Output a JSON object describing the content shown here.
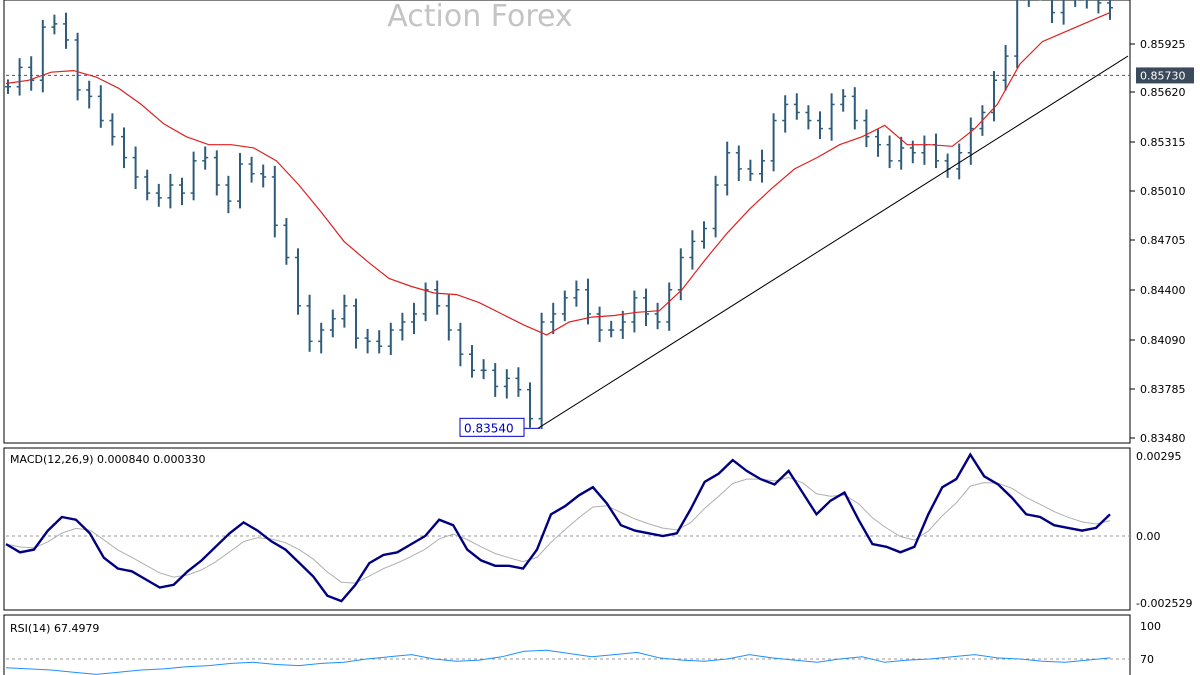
{
  "watermark": "Action Forex",
  "colors": {
    "bar": "#2e5c7a",
    "ma": "#e02020",
    "trendline": "#000000",
    "macd_main": "#000080",
    "macd_signal": "#b0b0b0",
    "rsi": "#1e90ff",
    "grid_dash": "#999999",
    "price_tag_bg": "#3a4a5a",
    "low_label_border": "#0000cc"
  },
  "chart_data": [
    {
      "type": "bar",
      "title": "",
      "ylim": [
        0.8348,
        0.8615
      ],
      "y_ticks": [
        "0.85925",
        "0.85620",
        "0.85315",
        "0.85010",
        "0.84705",
        "0.84400",
        "0.84090",
        "0.83785",
        "0.83480"
      ],
      "current_price_label": "0.85730",
      "current_price": 0.8573,
      "low_label": "0.83540",
      "low_value": 0.8354,
      "ma_series": [
        0.8568,
        0.857,
        0.8575,
        0.8576,
        0.8572,
        0.8565,
        0.8555,
        0.8543,
        0.8535,
        0.853,
        0.853,
        0.8528,
        0.852,
        0.8505,
        0.8488,
        0.847,
        0.8458,
        0.8447,
        0.8442,
        0.8438,
        0.8437,
        0.8432,
        0.8425,
        0.8418,
        0.8412,
        0.842,
        0.8423,
        0.8424,
        0.8426,
        0.8427,
        0.844,
        0.8458,
        0.8475,
        0.849,
        0.8503,
        0.8515,
        0.8522,
        0.853,
        0.8535,
        0.8542,
        0.853,
        0.853,
        0.8529,
        0.854,
        0.8555,
        0.858,
        0.8594,
        0.86,
        0.8606,
        0.8612
      ],
      "trendline": {
        "from": 0.8354,
        "to": 0.8585
      },
      "bars_close": [
        0.8566,
        0.8578,
        0.857,
        0.8603,
        0.8605,
        0.8595,
        0.8564,
        0.856,
        0.8545,
        0.8535,
        0.8522,
        0.851,
        0.85,
        0.8497,
        0.8505,
        0.85,
        0.852,
        0.8522,
        0.8505,
        0.8495,
        0.8518,
        0.8512,
        0.851,
        0.848,
        0.846,
        0.843,
        0.8408,
        0.8415,
        0.8422,
        0.843,
        0.841,
        0.8408,
        0.8405,
        0.8415,
        0.842,
        0.8425,
        0.844,
        0.843,
        0.8415,
        0.84,
        0.839,
        0.839,
        0.838,
        0.8385,
        0.8378,
        0.836,
        0.842,
        0.8425,
        0.8435,
        0.844,
        0.8425,
        0.8415,
        0.8415,
        0.842,
        0.8435,
        0.8425,
        0.842,
        0.844,
        0.846,
        0.847,
        0.8478,
        0.8505,
        0.8525,
        0.8515,
        0.8512,
        0.852,
        0.8545,
        0.8555,
        0.855,
        0.8545,
        0.854,
        0.8555,
        0.856,
        0.8545,
        0.8535,
        0.853,
        0.852,
        0.8528,
        0.8525,
        0.853,
        0.852,
        0.8515,
        0.8525,
        0.854,
        0.855,
        0.857,
        0.8585,
        0.862,
        0.863,
        0.8625,
        0.8612,
        0.8628,
        0.862,
        0.8622,
        0.8618,
        0.8615
      ]
    },
    {
      "type": "line",
      "title": "MACD(12,26,9) 0.000840 0.000330",
      "ylim": [
        -0.002529,
        0.00295
      ],
      "y_ticks": [
        "0.00295",
        "0.00",
        "-0.002529"
      ],
      "series": [
        {
          "values": [
            -0.0003,
            -0.0006,
            -0.0005,
            0.0002,
            0.0007,
            0.0006,
            0.0001,
            -0.0008,
            -0.0012,
            -0.0013,
            -0.0016,
            -0.0019,
            -0.0018,
            -0.0013,
            -0.0009,
            -0.0004,
            0.0001,
            0.0005,
            0.0002,
            -0.0002,
            -0.0005,
            -0.001,
            -0.0015,
            -0.0022,
            -0.0024,
            -0.0018,
            -0.001,
            -0.0007,
            -0.0006,
            -0.0003,
            0.0,
            0.0006,
            0.0004,
            -0.0005,
            -0.0009,
            -0.0011,
            -0.0011,
            -0.0012,
            -0.0005,
            0.0008,
            0.0011,
            0.0015,
            0.0018,
            0.0012,
            0.0004,
            0.0002,
            0.0001,
            0.0,
            0.0001,
            0.001,
            0.002,
            0.0023,
            0.0028,
            0.0024,
            0.0021,
            0.0019,
            0.0024,
            0.0016,
            0.0008,
            0.0013,
            0.0016,
            0.0006,
            -0.0003,
            -0.0004,
            -0.0006,
            -0.0004,
            0.0008,
            0.0018,
            0.0021,
            0.003,
            0.0022,
            0.0019,
            0.0014,
            0.0008,
            0.0007,
            0.0004,
            0.0003,
            0.0002,
            0.0003,
            0.0008
          ]
        }
      ]
    },
    {
      "type": "line",
      "title": "RSI(14) 67.4979",
      "ylim": [
        0,
        100
      ],
      "y_ticks": [
        "100",
        "70"
      ],
      "series": [
        {
          "values": [
            62,
            61,
            60,
            58,
            56,
            58,
            60,
            61,
            63,
            64,
            66,
            67,
            65,
            64,
            66,
            67,
            70,
            72,
            74,
            70,
            68,
            69,
            72,
            77,
            78,
            75,
            72,
            74,
            76,
            71,
            69,
            68,
            70,
            74,
            71,
            69,
            67,
            70,
            72,
            67,
            69,
            70,
            72,
            74,
            71,
            70,
            68,
            67,
            69,
            71
          ]
        }
      ]
    }
  ]
}
